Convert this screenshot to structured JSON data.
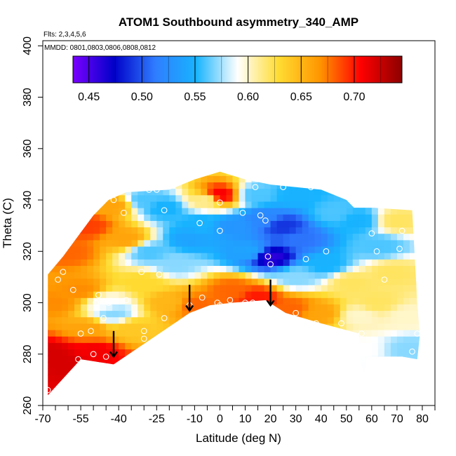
{
  "chart_data": {
    "type": "heatmap",
    "title": "ATOM1 Southbound asymmetry_340_AMP",
    "flights_note": "Flts: 2,3,4,5,6",
    "dates_note": "MMDD: 0801,0803,0806,0808,0812",
    "xlabel": "Latitude (deg N)",
    "ylabel": "Theta (C)",
    "xlim": [
      -70,
      85
    ],
    "ylim": [
      260,
      402
    ],
    "x_ticks": [
      -70,
      -55,
      -40,
      -25,
      -10,
      0,
      10,
      20,
      30,
      40,
      50,
      60,
      70,
      80
    ],
    "x_tick_labels": [
      "-70",
      "-55",
      "-40",
      "-25",
      "-10",
      "0",
      "10",
      "20",
      "30",
      "40",
      "50",
      "60",
      "70",
      "80"
    ],
    "x_minor_ticks": [
      -65,
      -60,
      -50,
      -45,
      -35,
      -30,
      -20,
      -15,
      -5,
      5,
      15,
      25,
      35,
      45,
      55,
      65,
      75,
      85
    ],
    "y_ticks": [
      260,
      280,
      300,
      320,
      340,
      360,
      380,
      400
    ],
    "y_tick_labels": [
      "260",
      "280",
      "300",
      "320",
      "340",
      "360",
      "380",
      "400"
    ],
    "colorbar": {
      "range": [
        0.435,
        0.745
      ],
      "ticks": [
        0.45,
        0.5,
        0.55,
        0.6,
        0.65,
        0.7
      ],
      "tick_labels": [
        "0.45",
        "0.50",
        "0.55",
        "0.60",
        "0.65",
        "0.70"
      ],
      "colors": [
        "#7a00ff",
        "#0000c8",
        "#2f7dff",
        "#18b4ff",
        "#ffffff",
        "#ffdc32",
        "#ff9600",
        "#ff0000",
        "#8c0000"
      ]
    },
    "field": {
      "boundary_top": [
        [
          -68,
          311
        ],
        [
          -62,
          318
        ],
        [
          -56,
          326
        ],
        [
          -50,
          334
        ],
        [
          -44,
          340
        ],
        [
          -37,
          343
        ],
        [
          -20,
          344
        ],
        [
          -10,
          348
        ],
        [
          0,
          351
        ],
        [
          10,
          348
        ],
        [
          20,
          346
        ],
        [
          30,
          345
        ],
        [
          40,
          344
        ],
        [
          50,
          340
        ],
        [
          53,
          337
        ],
        [
          60,
          337
        ],
        [
          76,
          336
        ],
        [
          78,
          300
        ],
        [
          79,
          287
        ],
        [
          78,
          278
        ],
        [
          72,
          279
        ],
        [
          58,
          279
        ],
        [
          57,
          273
        ],
        [
          55,
          278
        ]
      ],
      "boundary_bottom": [
        [
          -68,
          264
        ],
        [
          -55,
          278
        ],
        [
          -42,
          276
        ],
        [
          -12,
          296
        ],
        [
          -4,
          299
        ],
        [
          5,
          300
        ],
        [
          18,
          301
        ],
        [
          26,
          296
        ],
        [
          40,
          292
        ],
        [
          55,
          288
        ]
      ],
      "nodes": [
        {
          "x": -65,
          "y": 300,
          "v": 0.67
        },
        {
          "x": -66,
          "y": 280,
          "v": 0.72
        },
        {
          "x": -60,
          "y": 320,
          "v": 0.68
        },
        {
          "x": -52,
          "y": 330,
          "v": 0.69
        },
        {
          "x": -42,
          "y": 338,
          "v": 0.66
        },
        {
          "x": -55,
          "y": 305,
          "v": 0.67
        },
        {
          "x": -52,
          "y": 290,
          "v": 0.66
        },
        {
          "x": -45,
          "y": 300,
          "v": 0.59
        },
        {
          "x": -42,
          "y": 296,
          "v": 0.57
        },
        {
          "x": -37,
          "y": 325,
          "v": 0.66
        },
        {
          "x": -30,
          "y": 308,
          "v": 0.63
        },
        {
          "x": -28,
          "y": 320,
          "v": 0.56
        },
        {
          "x": -30,
          "y": 340,
          "v": 0.56
        },
        {
          "x": -22,
          "y": 337,
          "v": 0.55
        },
        {
          "x": -18,
          "y": 315,
          "v": 0.57
        },
        {
          "x": -20,
          "y": 300,
          "v": 0.65
        },
        {
          "x": -10,
          "y": 299,
          "v": 0.68
        },
        {
          "x": -12,
          "y": 325,
          "v": 0.54
        },
        {
          "x": -5,
          "y": 340,
          "v": 0.61
        },
        {
          "x": 0,
          "y": 342,
          "v": 0.71
        },
        {
          "x": -8,
          "y": 331,
          "v": 0.55
        },
        {
          "x": 5,
          "y": 330,
          "v": 0.53
        },
        {
          "x": 12,
          "y": 320,
          "v": 0.54
        },
        {
          "x": 5,
          "y": 305,
          "v": 0.68
        },
        {
          "x": 14,
          "y": 342,
          "v": 0.56
        },
        {
          "x": 17,
          "y": 333,
          "v": 0.52
        },
        {
          "x": 20,
          "y": 318,
          "v": 0.46
        },
        {
          "x": 25,
          "y": 330,
          "v": 0.49
        },
        {
          "x": 30,
          "y": 342,
          "v": 0.55
        },
        {
          "x": 32,
          "y": 325,
          "v": 0.51
        },
        {
          "x": 30,
          "y": 310,
          "v": 0.57
        },
        {
          "x": 15,
          "y": 302,
          "v": 0.7
        },
        {
          "x": 28,
          "y": 298,
          "v": 0.68
        },
        {
          "x": 42,
          "y": 315,
          "v": 0.55
        },
        {
          "x": 45,
          "y": 335,
          "v": 0.56
        },
        {
          "x": 55,
          "y": 332,
          "v": 0.55
        },
        {
          "x": 40,
          "y": 296,
          "v": 0.66
        },
        {
          "x": 55,
          "y": 295,
          "v": 0.6
        },
        {
          "x": 52,
          "y": 308,
          "v": 0.62
        },
        {
          "x": 63,
          "y": 322,
          "v": 0.56
        },
        {
          "x": 70,
          "y": 332,
          "v": 0.62
        },
        {
          "x": 68,
          "y": 312,
          "v": 0.62
        },
        {
          "x": 62,
          "y": 300,
          "v": 0.62
        },
        {
          "x": 74,
          "y": 295,
          "v": 0.6
        },
        {
          "x": 75,
          "y": 282,
          "v": 0.57
        },
        {
          "x": 56,
          "y": 282,
          "v": 0.59
        },
        {
          "x": -35,
          "y": 290,
          "v": 0.64
        },
        {
          "x": -50,
          "y": 281,
          "v": 0.71
        },
        {
          "x": -60,
          "y": 276,
          "v": 0.72
        }
      ]
    },
    "sample_points": [
      [
        -68,
        266
      ],
      [
        -64,
        309
      ],
      [
        -62,
        312
      ],
      [
        -58,
        305
      ],
      [
        -56,
        278
      ],
      [
        -55,
        288
      ],
      [
        -51,
        289
      ],
      [
        -50,
        280
      ],
      [
        -49,
        300
      ],
      [
        -48,
        303
      ],
      [
        -46,
        294
      ],
      [
        -45,
        279
      ],
      [
        -44,
        300
      ],
      [
        -42,
        340
      ],
      [
        -38,
        335
      ],
      [
        -37,
        301
      ],
      [
        -31,
        312
      ],
      [
        -30,
        289
      ],
      [
        -30,
        286
      ],
      [
        -28,
        344
      ],
      [
        -25,
        344
      ],
      [
        -24,
        311
      ],
      [
        -22,
        294
      ],
      [
        -22,
        336
      ],
      [
        -12,
        299
      ],
      [
        -8,
        331
      ],
      [
        -7,
        302
      ],
      [
        -1,
        300
      ],
      [
        0,
        299
      ],
      [
        0,
        339
      ],
      [
        0,
        328
      ],
      [
        4,
        301
      ],
      [
        9,
        335
      ],
      [
        10,
        300
      ],
      [
        13,
        300
      ],
      [
        14,
        345
      ],
      [
        16,
        334
      ],
      [
        18,
        332
      ],
      [
        19,
        318
      ],
      [
        20,
        315
      ],
      [
        25,
        345
      ],
      [
        30,
        296
      ],
      [
        34,
        317
      ],
      [
        36,
        345
      ],
      [
        38,
        292
      ],
      [
        42,
        320
      ],
      [
        48,
        292
      ],
      [
        56,
        288
      ],
      [
        60,
        327
      ],
      [
        62,
        320
      ],
      [
        65,
        309
      ],
      [
        71,
        321
      ],
      [
        72,
        328
      ],
      [
        76,
        281
      ],
      [
        78,
        288
      ]
    ],
    "arrows": [
      [
        -42,
        284
      ],
      [
        -12,
        302
      ],
      [
        20,
        304
      ]
    ]
  }
}
